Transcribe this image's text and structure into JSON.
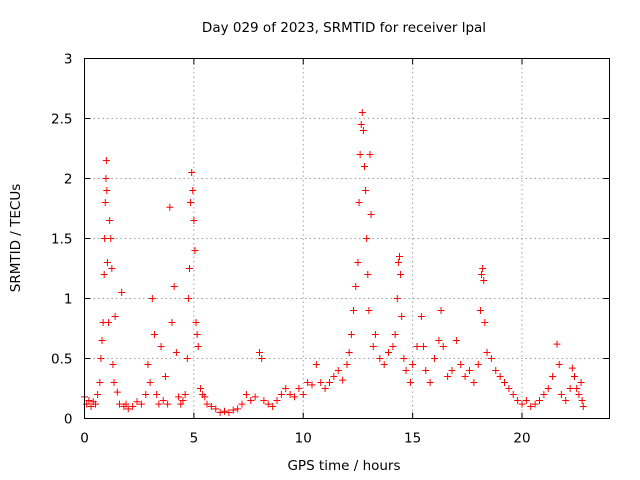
{
  "chart_data": {
    "type": "scatter",
    "title": "Day 029 of 2023, SRMTID for receiver lpal",
    "xlabel": "GPS time / hours",
    "ylabel": "SRMTID / TECUs",
    "xlim": [
      0,
      24
    ],
    "ylim": [
      0,
      3
    ],
    "grid": true,
    "marker": "plus",
    "color": "#ff0000",
    "x_ticks": [
      {
        "value": 0,
        "label": "0"
      },
      {
        "value": 5,
        "label": "5"
      },
      {
        "value": 10,
        "label": "10"
      },
      {
        "value": 15,
        "label": "15"
      },
      {
        "value": 20,
        "label": "20"
      }
    ],
    "y_ticks": [
      {
        "value": 0,
        "label": "0"
      },
      {
        "value": 0.5,
        "label": "0.5"
      },
      {
        "value": 1,
        "label": "1"
      },
      {
        "value": 1.5,
        "label": "1.5"
      },
      {
        "value": 2,
        "label": "2"
      },
      {
        "value": 2.5,
        "label": "2.5"
      },
      {
        "value": 3,
        "label": "3"
      }
    ],
    "series": [
      {
        "name": "SRMTID",
        "points": [
          [
            0.0,
            0.18
          ],
          [
            0.1,
            0.12
          ],
          [
            0.2,
            0.15
          ],
          [
            0.3,
            0.1
          ],
          [
            0.4,
            0.14
          ],
          [
            0.5,
            0.12
          ],
          [
            0.6,
            0.2
          ],
          [
            0.7,
            0.3
          ],
          [
            0.75,
            0.5
          ],
          [
            0.8,
            0.65
          ],
          [
            0.85,
            0.8
          ],
          [
            0.9,
            1.2
          ],
          [
            0.92,
            1.5
          ],
          [
            0.95,
            1.8
          ],
          [
            0.98,
            2.0
          ],
          [
            1.0,
            2.15
          ],
          [
            1.02,
            1.9
          ],
          [
            1.05,
            1.3
          ],
          [
            1.1,
            0.8
          ],
          [
            1.15,
            1.65
          ],
          [
            1.2,
            1.5
          ],
          [
            1.25,
            1.25
          ],
          [
            1.3,
            0.45
          ],
          [
            1.35,
            0.3
          ],
          [
            1.4,
            0.85
          ],
          [
            1.5,
            0.22
          ],
          [
            1.6,
            0.12
          ],
          [
            1.7,
            1.05
          ],
          [
            1.8,
            0.1
          ],
          [
            1.9,
            0.12
          ],
          [
            2.0,
            0.08
          ],
          [
            2.2,
            0.1
          ],
          [
            2.4,
            0.14
          ],
          [
            2.6,
            0.12
          ],
          [
            2.8,
            0.2
          ],
          [
            2.9,
            0.45
          ],
          [
            3.0,
            0.3
          ],
          [
            3.1,
            1.0
          ],
          [
            3.2,
            0.7
          ],
          [
            3.3,
            0.2
          ],
          [
            3.4,
            0.12
          ],
          [
            3.5,
            0.6
          ],
          [
            3.6,
            0.15
          ],
          [
            3.7,
            0.35
          ],
          [
            3.8,
            0.12
          ],
          [
            3.9,
            1.76
          ],
          [
            4.0,
            0.8
          ],
          [
            4.1,
            1.1
          ],
          [
            4.2,
            0.55
          ],
          [
            4.3,
            0.18
          ],
          [
            4.4,
            0.12
          ],
          [
            4.5,
            0.15
          ],
          [
            4.6,
            0.2
          ],
          [
            4.7,
            0.5
          ],
          [
            4.75,
            1.0
          ],
          [
            4.8,
            1.25
          ],
          [
            4.85,
            1.8
          ],
          [
            4.9,
            2.05
          ],
          [
            4.95,
            1.9
          ],
          [
            5.0,
            1.65
          ],
          [
            5.05,
            1.4
          ],
          [
            5.1,
            0.8
          ],
          [
            5.15,
            0.7
          ],
          [
            5.2,
            0.6
          ],
          [
            5.3,
            0.25
          ],
          [
            5.4,
            0.2
          ],
          [
            5.5,
            0.18
          ],
          [
            5.6,
            0.12
          ],
          [
            5.8,
            0.1
          ],
          [
            6.0,
            0.08
          ],
          [
            6.2,
            0.05
          ],
          [
            6.4,
            0.06
          ],
          [
            6.6,
            0.05
          ],
          [
            6.8,
            0.07
          ],
          [
            7.0,
            0.08
          ],
          [
            7.2,
            0.12
          ],
          [
            7.4,
            0.2
          ],
          [
            7.6,
            0.15
          ],
          [
            7.8,
            0.18
          ],
          [
            8.0,
            0.55
          ],
          [
            8.1,
            0.5
          ],
          [
            8.2,
            0.15
          ],
          [
            8.4,
            0.12
          ],
          [
            8.6,
            0.1
          ],
          [
            8.8,
            0.15
          ],
          [
            9.0,
            0.2
          ],
          [
            9.2,
            0.25
          ],
          [
            9.4,
            0.2
          ],
          [
            9.6,
            0.18
          ],
          [
            9.8,
            0.25
          ],
          [
            10.0,
            0.2
          ],
          [
            10.2,
            0.3
          ],
          [
            10.4,
            0.28
          ],
          [
            10.6,
            0.45
          ],
          [
            10.8,
            0.3
          ],
          [
            11.0,
            0.25
          ],
          [
            11.2,
            0.3
          ],
          [
            11.4,
            0.35
          ],
          [
            11.6,
            0.4
          ],
          [
            11.8,
            0.32
          ],
          [
            12.0,
            0.45
          ],
          [
            12.1,
            0.55
          ],
          [
            12.2,
            0.7
          ],
          [
            12.3,
            0.9
          ],
          [
            12.4,
            1.1
          ],
          [
            12.5,
            1.3
          ],
          [
            12.55,
            1.8
          ],
          [
            12.6,
            2.2
          ],
          [
            12.65,
            2.45
          ],
          [
            12.7,
            2.55
          ],
          [
            12.75,
            2.4
          ],
          [
            12.8,
            2.1
          ],
          [
            12.85,
            1.9
          ],
          [
            12.9,
            1.5
          ],
          [
            12.95,
            1.2
          ],
          [
            13.0,
            0.9
          ],
          [
            13.05,
            2.2
          ],
          [
            13.1,
            1.7
          ],
          [
            13.2,
            0.6
          ],
          [
            13.3,
            0.7
          ],
          [
            13.5,
            0.5
          ],
          [
            13.7,
            0.45
          ],
          [
            13.9,
            0.55
          ],
          [
            14.1,
            0.6
          ],
          [
            14.2,
            0.7
          ],
          [
            14.3,
            1.0
          ],
          [
            14.35,
            1.3
          ],
          [
            14.4,
            1.35
          ],
          [
            14.45,
            1.2
          ],
          [
            14.5,
            0.85
          ],
          [
            14.6,
            0.5
          ],
          [
            14.7,
            0.4
          ],
          [
            14.9,
            0.3
          ],
          [
            15.0,
            0.45
          ],
          [
            15.2,
            0.6
          ],
          [
            15.4,
            0.85
          ],
          [
            15.5,
            0.6
          ],
          [
            15.6,
            0.4
          ],
          [
            15.8,
            0.3
          ],
          [
            16.0,
            0.5
          ],
          [
            16.2,
            0.65
          ],
          [
            16.3,
            0.9
          ],
          [
            16.4,
            0.6
          ],
          [
            16.6,
            0.35
          ],
          [
            16.8,
            0.4
          ],
          [
            17.0,
            0.65
          ],
          [
            17.2,
            0.45
          ],
          [
            17.4,
            0.35
          ],
          [
            17.6,
            0.4
          ],
          [
            17.8,
            0.3
          ],
          [
            18.0,
            0.45
          ],
          [
            18.1,
            0.9
          ],
          [
            18.15,
            1.2
          ],
          [
            18.2,
            1.25
          ],
          [
            18.25,
            1.15
          ],
          [
            18.3,
            0.8
          ],
          [
            18.4,
            0.55
          ],
          [
            18.6,
            0.5
          ],
          [
            18.8,
            0.4
          ],
          [
            19.0,
            0.35
          ],
          [
            19.2,
            0.3
          ],
          [
            19.4,
            0.25
          ],
          [
            19.6,
            0.2
          ],
          [
            19.8,
            0.15
          ],
          [
            20.0,
            0.12
          ],
          [
            20.2,
            0.15
          ],
          [
            20.4,
            0.1
          ],
          [
            20.6,
            0.12
          ],
          [
            20.8,
            0.15
          ],
          [
            21.0,
            0.2
          ],
          [
            21.2,
            0.25
          ],
          [
            21.4,
            0.35
          ],
          [
            21.6,
            0.62
          ],
          [
            21.7,
            0.45
          ],
          [
            21.8,
            0.2
          ],
          [
            22.0,
            0.15
          ],
          [
            22.2,
            0.25
          ],
          [
            22.3,
            0.42
          ],
          [
            22.4,
            0.35
          ],
          [
            22.5,
            0.25
          ],
          [
            22.6,
            0.2
          ],
          [
            22.7,
            0.3
          ],
          [
            22.75,
            0.15
          ],
          [
            22.8,
            0.1
          ]
        ]
      }
    ]
  }
}
